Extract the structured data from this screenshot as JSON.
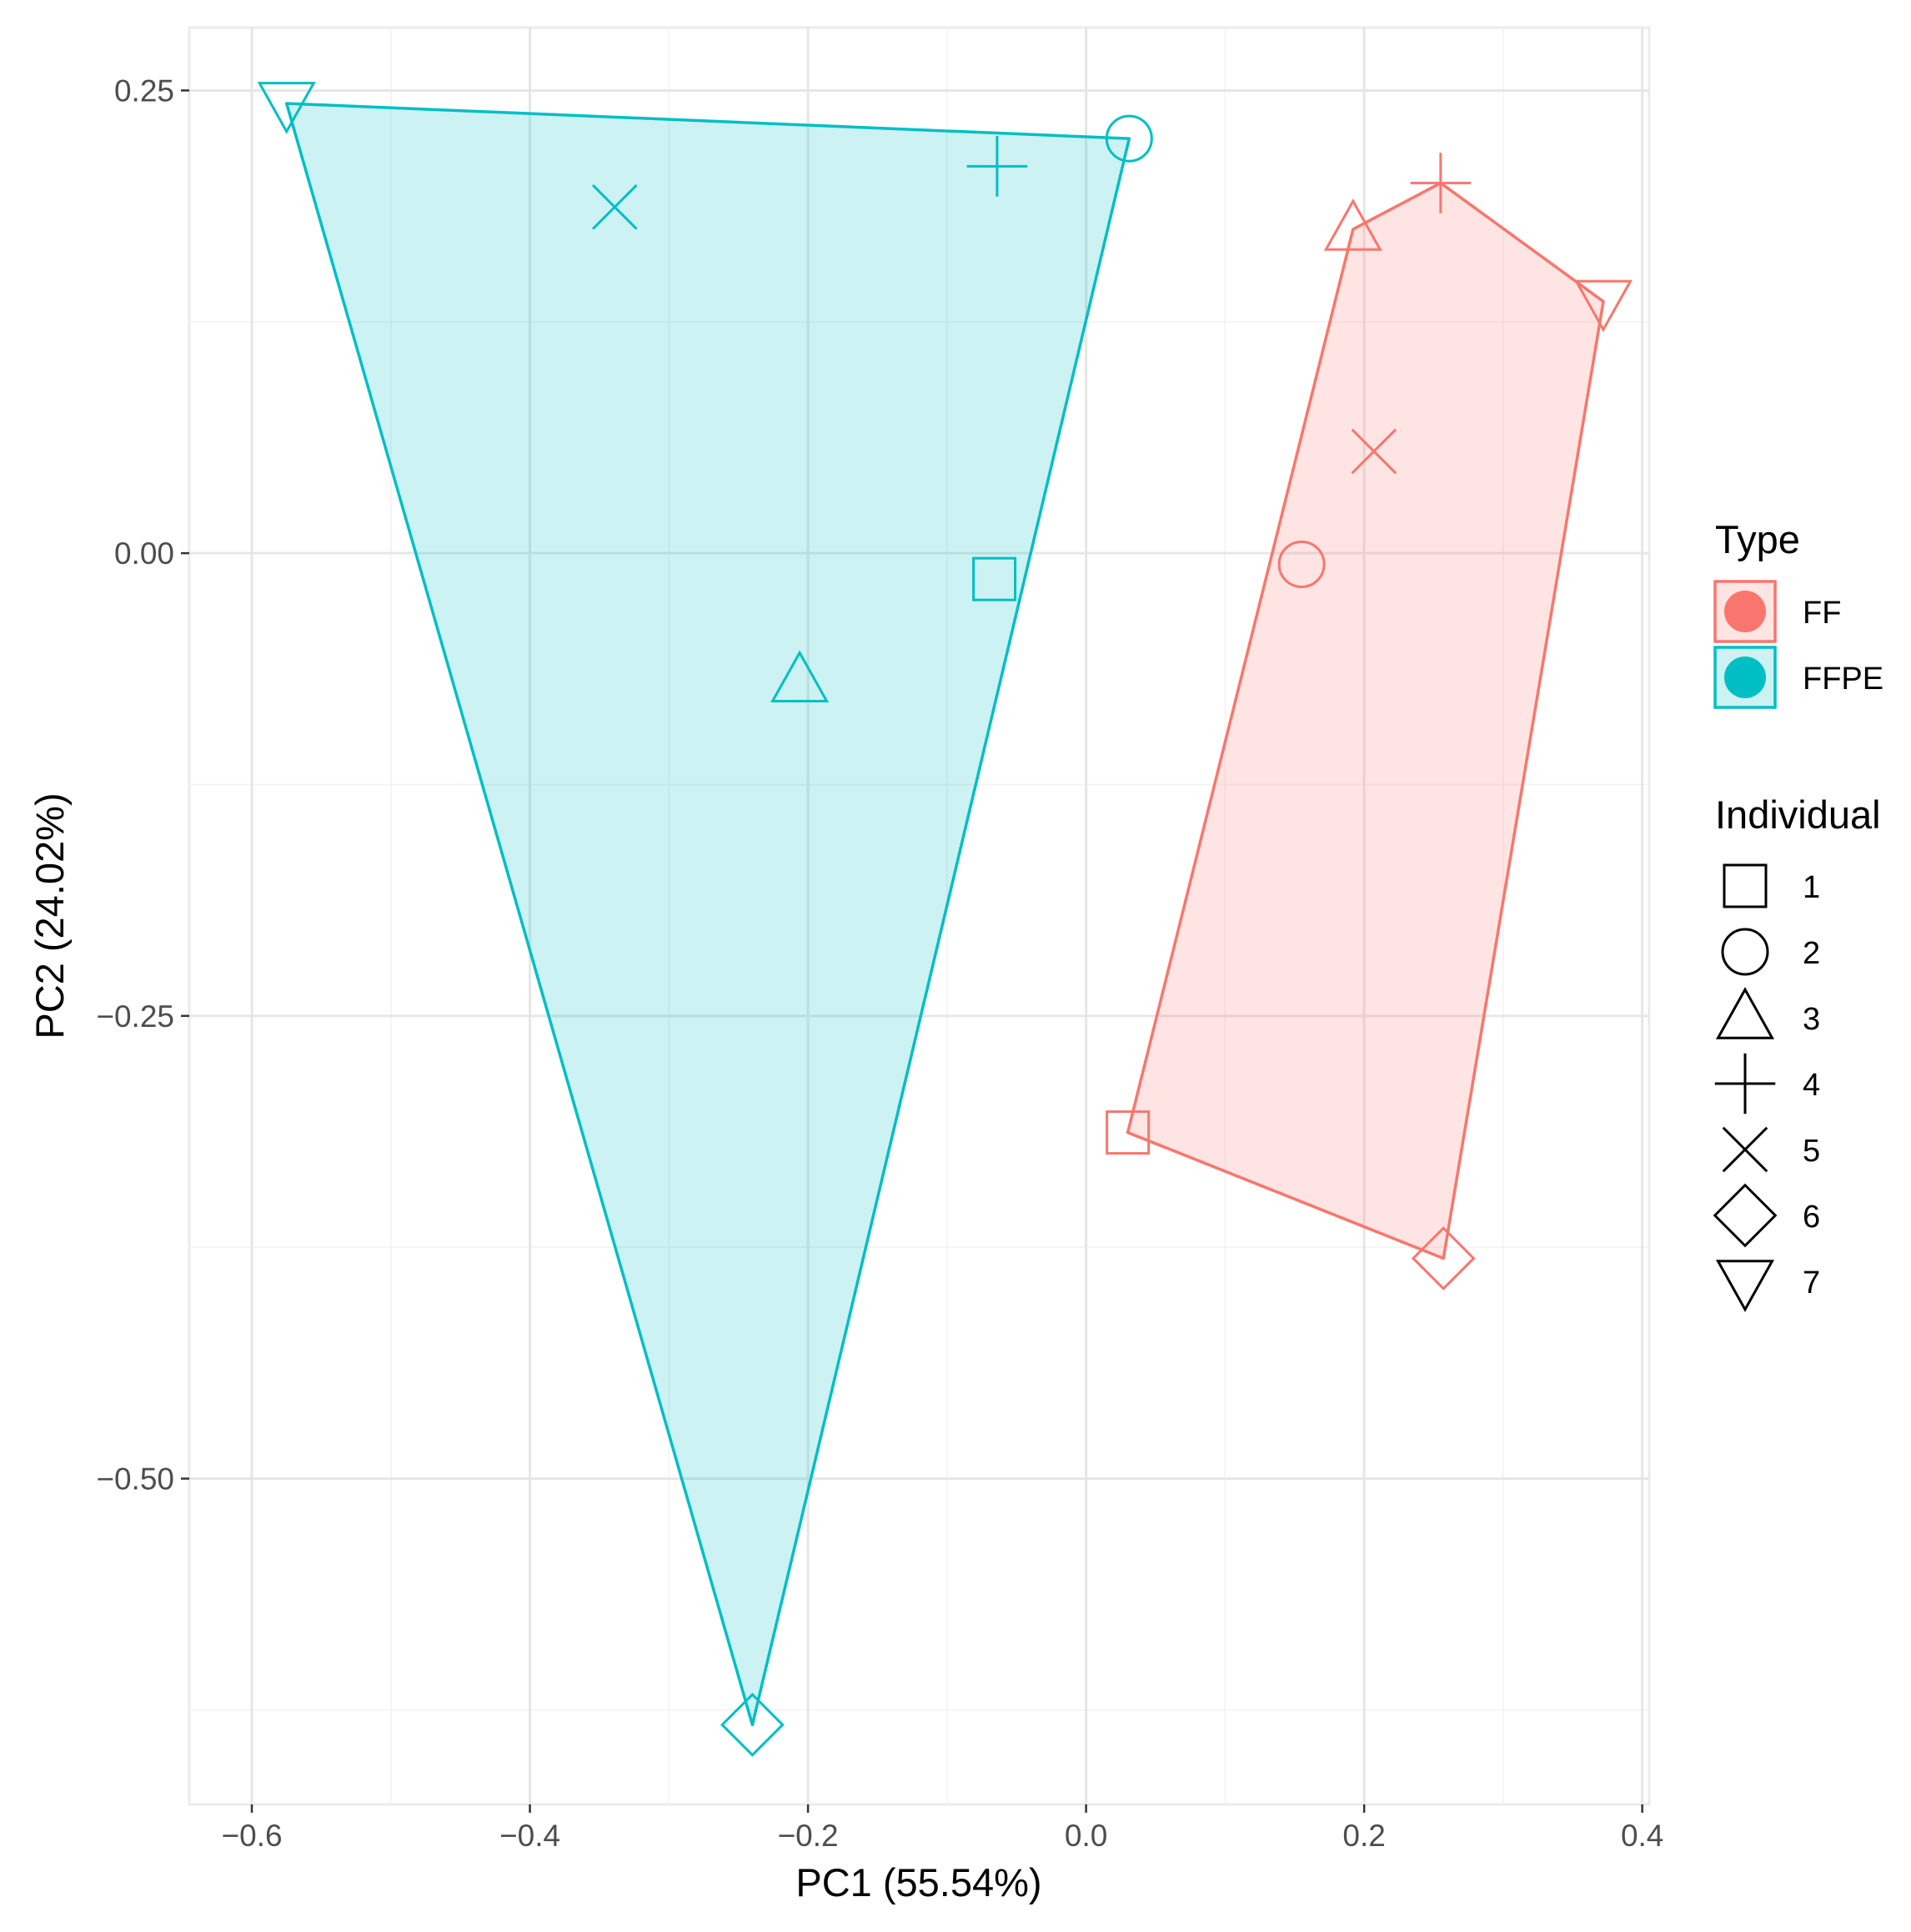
{
  "chart_data": {
    "type": "scatter",
    "xlabel": "PC1 (55.54%)",
    "ylabel": "PC2 (24.02%)",
    "xlim": [
      -0.645,
      0.405
    ],
    "ylim": [
      -0.676,
      0.284
    ],
    "x_ticks": [
      -0.6,
      -0.4,
      -0.2,
      0.0,
      0.2,
      0.4
    ],
    "x_tick_labels": [
      "−0.6",
      "−0.4",
      "−0.2",
      "0.0",
      "0.2",
      "0.4"
    ],
    "y_ticks": [
      0.25,
      0.0,
      -0.25,
      -0.5
    ],
    "y_tick_labels": [
      "0.25",
      "0.00",
      "−0.25",
      "−0.50"
    ],
    "grid": true,
    "hulls_filled": true,
    "legend_position": "right",
    "colors": {
      "FF": "#F8766D",
      "FFPE": "#00BFC4"
    },
    "legends": {
      "type": {
        "title": "Type",
        "items": [
          "FF",
          "FFPE"
        ]
      },
      "individual": {
        "title": "Individual",
        "items": [
          {
            "label": "1",
            "shape": "square"
          },
          {
            "label": "2",
            "shape": "circle"
          },
          {
            "label": "3",
            "shape": "triangle-up"
          },
          {
            "label": "4",
            "shape": "plus"
          },
          {
            "label": "5",
            "shape": "cross"
          },
          {
            "label": "6",
            "shape": "diamond"
          },
          {
            "label": "7",
            "shape": "triangle-down"
          }
        ]
      }
    },
    "series": [
      {
        "name": "FF",
        "points": [
          {
            "individual": "1",
            "x": 0.03,
            "y": -0.313
          },
          {
            "individual": "2",
            "x": 0.155,
            "y": -0.006
          },
          {
            "individual": "3",
            "x": 0.192,
            "y": 0.175
          },
          {
            "individual": "4",
            "x": 0.255,
            "y": 0.2
          },
          {
            "individual": "5",
            "x": 0.207,
            "y": 0.055
          },
          {
            "individual": "6",
            "x": 0.257,
            "y": -0.381
          },
          {
            "individual": "7",
            "x": 0.372,
            "y": 0.136
          }
        ],
        "hull": [
          "1",
          "3",
          "4",
          "7",
          "6"
        ]
      },
      {
        "name": "FFPE",
        "points": [
          {
            "individual": "1",
            "x": -0.066,
            "y": -0.014
          },
          {
            "individual": "2",
            "x": 0.031,
            "y": 0.224
          },
          {
            "individual": "3",
            "x": -0.206,
            "y": -0.069
          },
          {
            "individual": "4",
            "x": -0.064,
            "y": 0.209
          },
          {
            "individual": "5",
            "x": -0.339,
            "y": 0.187
          },
          {
            "individual": "6",
            "x": -0.24,
            "y": -0.633
          },
          {
            "individual": "7",
            "x": -0.575,
            "y": 0.243
          }
        ],
        "hull": [
          "7",
          "2",
          "6"
        ]
      }
    ]
  }
}
